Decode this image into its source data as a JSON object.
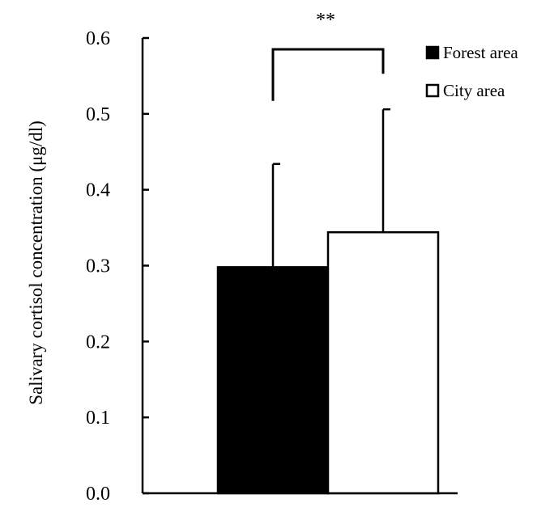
{
  "chart_data": {
    "type": "bar",
    "ylabel": "Salivary cortisol concentration (μg/dl)",
    "ylim": [
      0,
      0.6
    ],
    "yticks": [
      "0.0",
      "0.1",
      "0.2",
      "0.3",
      "0.4",
      "0.5",
      "0.6"
    ],
    "series": [
      {
        "name": "Forest area",
        "value": 0.298,
        "error": 0.136,
        "fill": "#000000"
      },
      {
        "name": "City area",
        "value": 0.344,
        "error": 0.162,
        "fill": "#ffffff"
      }
    ],
    "significance": "**",
    "legend_position": "top-right",
    "grid": false
  }
}
